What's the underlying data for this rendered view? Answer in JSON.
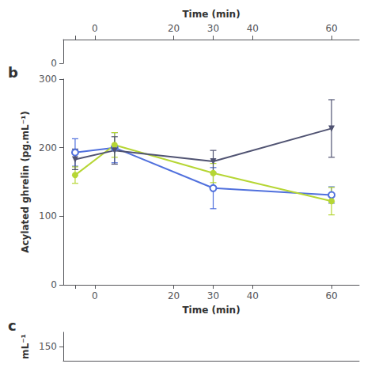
{
  "chart_data": [
    {
      "type": "axes",
      "xlabel": "Time (min)",
      "xlim": [
        -8,
        67
      ],
      "xticks": [
        {
          "value": -5,
          "label": ""
        },
        0,
        20,
        30,
        40,
        60
      ],
      "ylim": [
        0,
        10
      ],
      "yticks": [
        0
      ],
      "grid": false
    },
    {
      "type": "line",
      "annotation": "b",
      "xlabel": "Time (min)",
      "ylabel": "Acylated ghrelin (pg.mL⁻¹)",
      "x": [
        -5,
        5,
        30,
        60
      ],
      "series": [
        {
          "marker": "open_circle",
          "values": [
            193,
            200,
            141,
            131
          ],
          "errors": [
            20,
            22,
            30,
            12
          ]
        },
        {
          "marker": "circle",
          "values": [
            160,
            204,
            163,
            122
          ],
          "errors": [
            12,
            18,
            14,
            20
          ]
        },
        {
          "marker": "triangle_down",
          "values": [
            183,
            196,
            180,
            228
          ],
          "errors": [
            15,
            20,
            16,
            42
          ]
        }
      ],
      "xlim": [
        -8,
        67
      ],
      "xticks": [
        {
          "value": -5,
          "label": ""
        },
        0,
        20,
        30,
        40,
        60
      ],
      "ylim": [
        0,
        300
      ],
      "yticks": [
        0,
        100,
        200,
        300
      ],
      "grid": false
    },
    {
      "type": "axes",
      "annotation": "c",
      "ylabel": "mL⁻¹",
      "xlim": [
        -8,
        67
      ],
      "ylim": [
        100,
        200
      ],
      "yticks": [
        150
      ],
      "tick_labels": "y",
      "grid": false
    }
  ]
}
